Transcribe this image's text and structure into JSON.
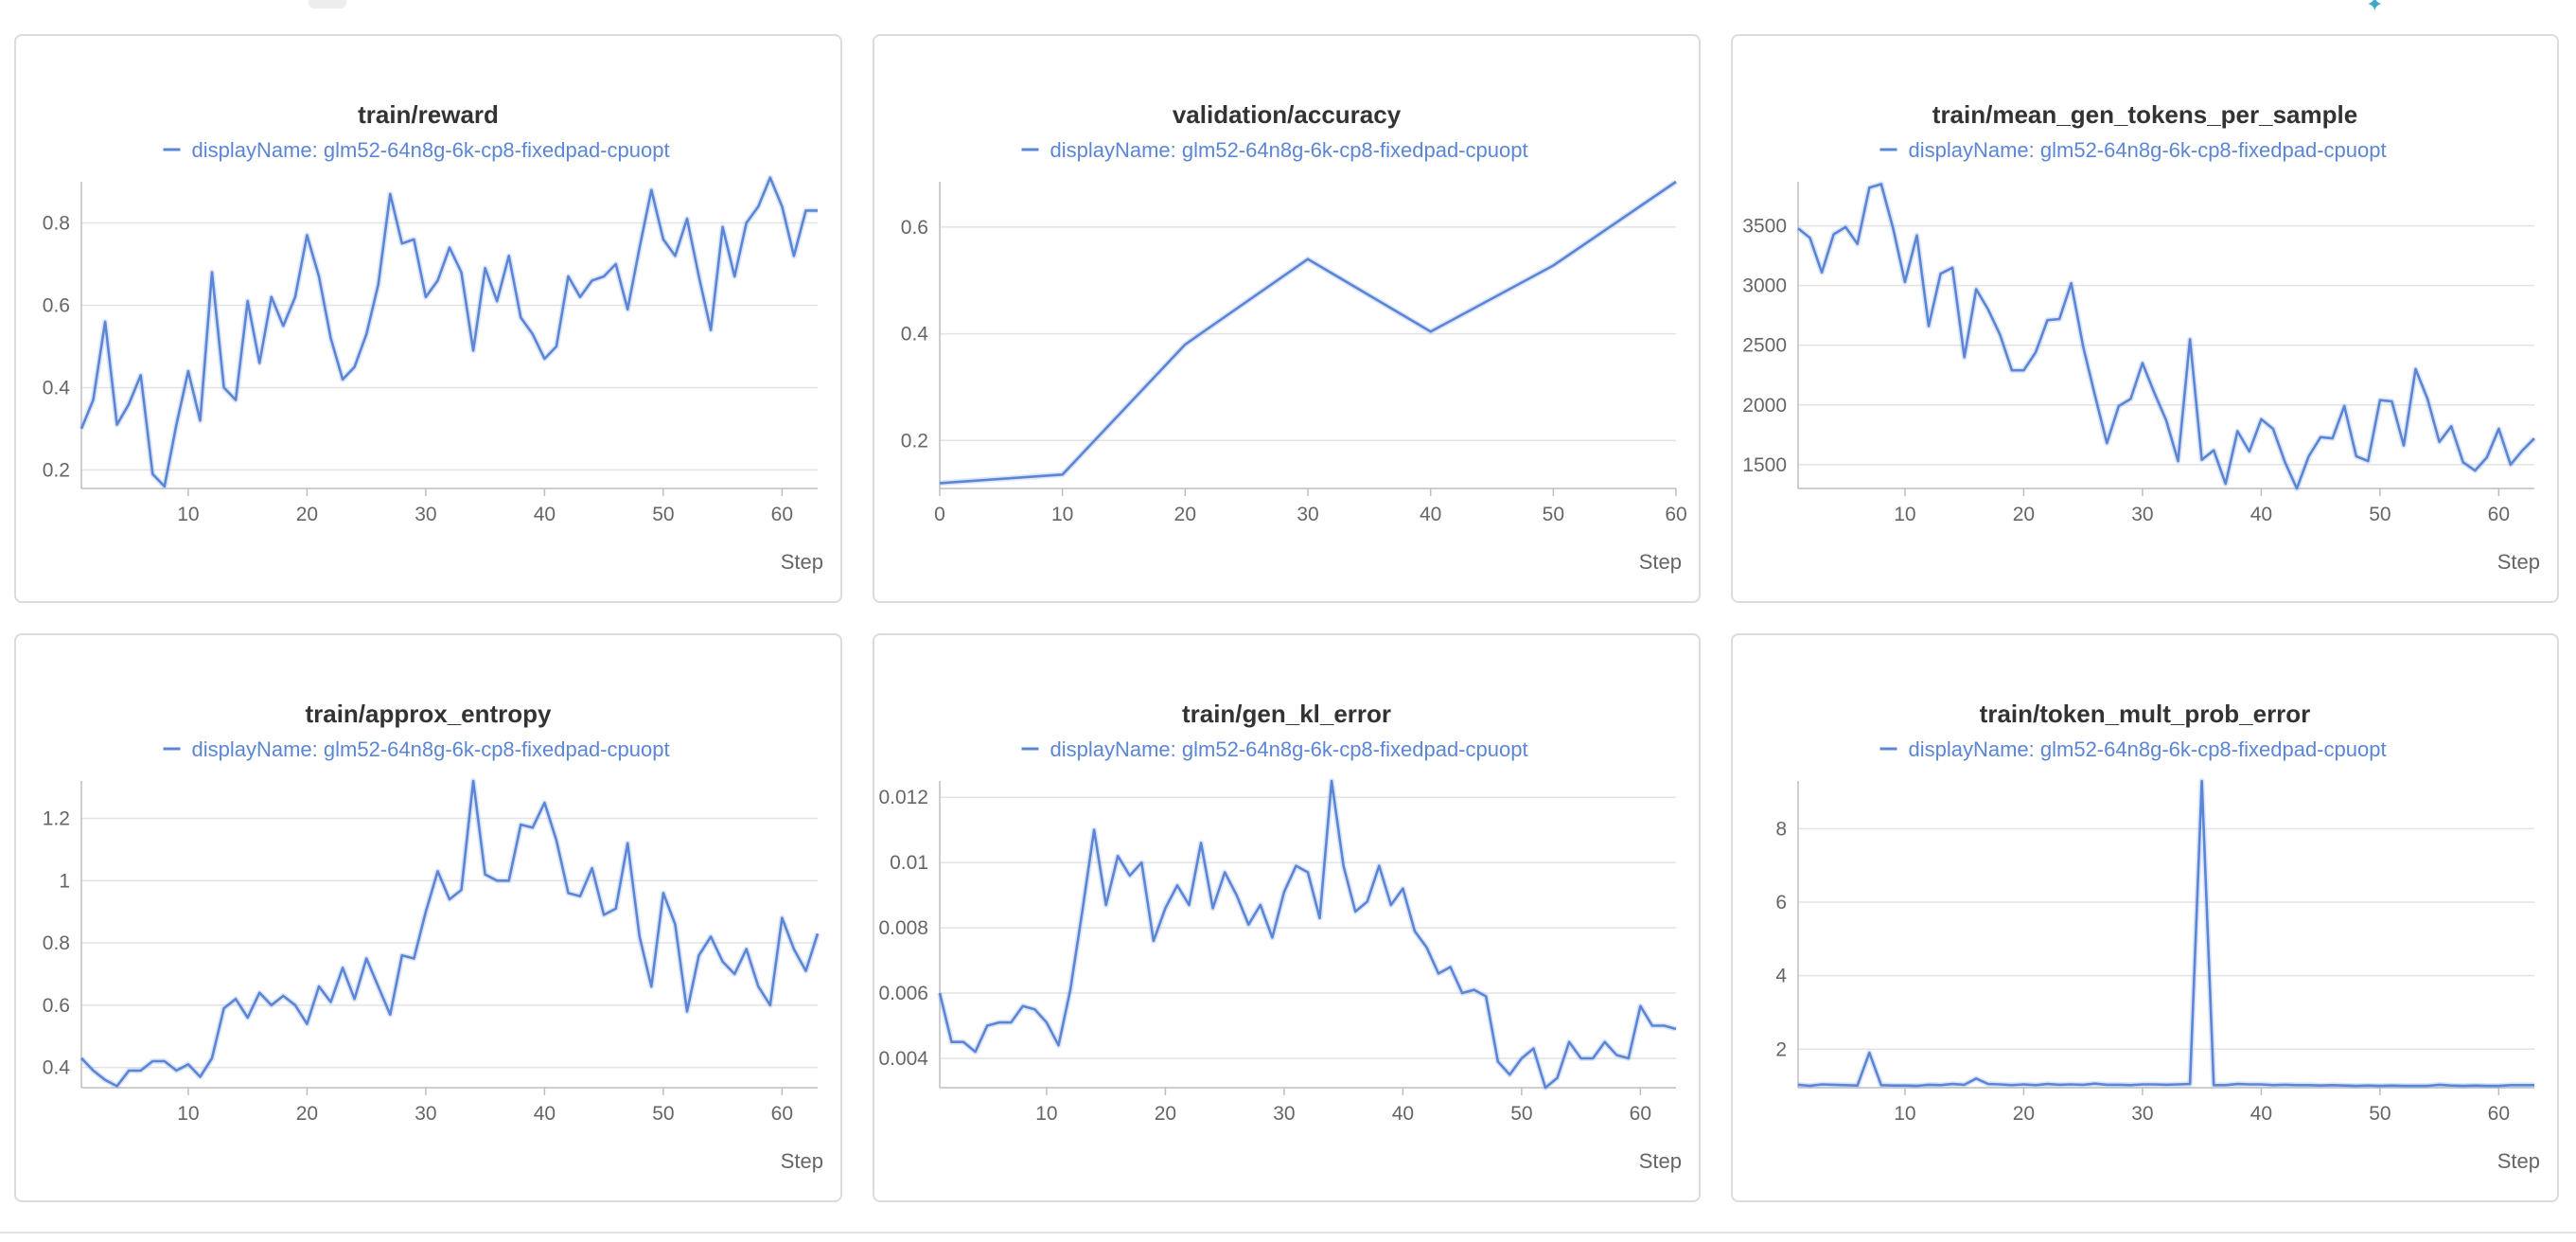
{
  "colors": {
    "series": "#5b86d6",
    "band": "#9db5ea",
    "grid": "#e3e3e3",
    "axis": "#bdbdbd"
  },
  "chart_data": [
    {
      "type": "line",
      "title": "train/reward",
      "legend": "displayName: glm52-64n8g-6k-cp8-fixedpad-cpuopt",
      "xlabel": "Step",
      "xlim": [
        1,
        63
      ],
      "ylim": [
        0.155,
        0.9
      ],
      "xticks": [
        10,
        20,
        30,
        40,
        50,
        60
      ],
      "yticks": [
        0.2,
        0.4,
        0.6,
        0.8
      ],
      "grid": true,
      "series": [
        {
          "x": [
            1,
            2,
            3,
            4,
            5,
            6,
            7,
            8,
            9,
            10,
            11,
            12,
            13,
            14,
            15,
            16,
            17,
            18,
            19,
            20,
            21,
            22,
            23,
            24,
            25,
            26,
            27,
            28,
            29,
            30,
            31,
            32,
            33,
            34,
            35,
            36,
            37,
            38,
            39,
            40,
            41,
            42,
            43,
            44,
            45,
            46,
            47,
            48,
            49,
            50,
            51,
            52,
            53,
            54,
            55,
            56,
            57,
            58,
            59,
            60,
            61,
            62,
            63
          ],
          "y": [
            0.3,
            0.37,
            0.56,
            0.31,
            0.36,
            0.43,
            0.19,
            0.16,
            0.31,
            0.44,
            0.32,
            0.68,
            0.4,
            0.37,
            0.61,
            0.46,
            0.62,
            0.55,
            0.62,
            0.77,
            0.67,
            0.52,
            0.42,
            0.45,
            0.53,
            0.65,
            0.87,
            0.75,
            0.76,
            0.62,
            0.66,
            0.74,
            0.68,
            0.49,
            0.69,
            0.61,
            0.72,
            0.57,
            0.53,
            0.47,
            0.5,
            0.67,
            0.62,
            0.66,
            0.67,
            0.7,
            0.59,
            0.74,
            0.88,
            0.76,
            0.72,
            0.81,
            0.67,
            0.54,
            0.79,
            0.67,
            0.8,
            0.84,
            0.91,
            0.84,
            0.72,
            0.83,
            0.83
          ]
        }
      ]
    },
    {
      "type": "line",
      "title": "validation/accuracy",
      "legend": "displayName: glm52-64n8g-6k-cp8-fixedpad-cpuopt",
      "xlabel": "Step",
      "xlim": [
        0,
        60
      ],
      "ylim": [
        0.11,
        0.685
      ],
      "xticks": [
        0,
        10,
        20,
        30,
        40,
        50,
        60
      ],
      "yticks": [
        0.2,
        0.4,
        0.6
      ],
      "grid": true,
      "series": [
        {
          "x": [
            0,
            10,
            20,
            30,
            40,
            50,
            60
          ],
          "y": [
            0.12,
            0.136,
            0.38,
            0.54,
            0.404,
            0.528,
            0.685
          ]
        }
      ]
    },
    {
      "type": "line",
      "title": "train/mean_gen_tokens_per_sample",
      "legend": "displayName: glm52-64n8g-6k-cp8-fixedpad-cpuopt",
      "xlabel": "Step",
      "xlim": [
        1,
        63
      ],
      "ylim": [
        1300,
        3870
      ],
      "xticks": [
        10,
        20,
        30,
        40,
        50,
        60
      ],
      "yticks": [
        1500,
        2000,
        2500,
        3000,
        3500
      ],
      "grid": true,
      "series": [
        {
          "x": [
            1,
            2,
            3,
            4,
            5,
            6,
            7,
            8,
            9,
            10,
            11,
            12,
            13,
            14,
            15,
            16,
            17,
            18,
            19,
            20,
            21,
            22,
            23,
            24,
            25,
            26,
            27,
            28,
            29,
            30,
            31,
            32,
            33,
            34,
            35,
            36,
            37,
            38,
            39,
            40,
            41,
            42,
            43,
            44,
            45,
            46,
            47,
            48,
            49,
            50,
            51,
            52,
            53,
            54,
            55,
            56,
            57,
            58,
            59,
            60,
            61,
            62,
            63
          ],
          "y": [
            3480,
            3400,
            3110,
            3430,
            3490,
            3350,
            3820,
            3850,
            3480,
            3030,
            3420,
            2660,
            3100,
            3150,
            2400,
            2970,
            2800,
            2590,
            2290,
            2290,
            2440,
            2710,
            2720,
            3020,
            2490,
            2080,
            1680,
            1990,
            2050,
            2350,
            2100,
            1870,
            1530,
            2550,
            1540,
            1620,
            1340,
            1780,
            1610,
            1880,
            1800,
            1520,
            1300,
            1570,
            1730,
            1720,
            1990,
            1570,
            1530,
            2040,
            2030,
            1660,
            2300,
            2050,
            1690,
            1820,
            1520,
            1450,
            1560,
            1800,
            1500,
            1620,
            1720
          ]
        }
      ]
    },
    {
      "type": "line",
      "title": "train/approx_entropy",
      "legend": "displayName: glm52-64n8g-6k-cp8-fixedpad-cpuopt",
      "xlabel": "Step",
      "xlim": [
        1,
        63
      ],
      "ylim": [
        0.335,
        1.32
      ],
      "xticks": [
        10,
        20,
        30,
        40,
        50,
        60
      ],
      "yticks": [
        0.4,
        0.6,
        0.8,
        1,
        1.2
      ],
      "grid": true,
      "series": [
        {
          "x": [
            1,
            2,
            3,
            4,
            5,
            6,
            7,
            8,
            9,
            10,
            11,
            12,
            13,
            14,
            15,
            16,
            17,
            18,
            19,
            20,
            21,
            22,
            23,
            24,
            25,
            26,
            27,
            28,
            29,
            30,
            31,
            32,
            33,
            34,
            35,
            36,
            37,
            38,
            39,
            40,
            41,
            42,
            43,
            44,
            45,
            46,
            47,
            48,
            49,
            50,
            51,
            52,
            53,
            54,
            55,
            56,
            57,
            58,
            59,
            60,
            61,
            62,
            63
          ],
          "y": [
            0.43,
            0.39,
            0.36,
            0.34,
            0.39,
            0.39,
            0.42,
            0.42,
            0.39,
            0.41,
            0.37,
            0.43,
            0.59,
            0.62,
            0.56,
            0.64,
            0.6,
            0.63,
            0.6,
            0.54,
            0.66,
            0.61,
            0.72,
            0.62,
            0.75,
            0.66,
            0.57,
            0.76,
            0.75,
            0.9,
            1.03,
            0.94,
            0.97,
            1.32,
            1.02,
            1.0,
            1.0,
            1.18,
            1.17,
            1.25,
            1.13,
            0.96,
            0.95,
            1.04,
            0.89,
            0.91,
            1.12,
            0.82,
            0.66,
            0.96,
            0.86,
            0.58,
            0.76,
            0.82,
            0.74,
            0.7,
            0.78,
            0.66,
            0.6,
            0.88,
            0.78,
            0.71,
            0.83
          ]
        }
      ]
    },
    {
      "type": "line",
      "title": "train/gen_kl_error",
      "legend": "displayName: glm52-64n8g-6k-cp8-fixedpad-cpuopt",
      "xlabel": "Step",
      "xlim": [
        1,
        63
      ],
      "ylim": [
        0.0031,
        0.0125
      ],
      "xticks": [
        10,
        20,
        30,
        40,
        50,
        60
      ],
      "yticks": [
        0.004,
        0.006,
        0.008,
        0.01,
        0.012
      ],
      "ytick_labels": [
        "0.004",
        "0.006",
        "0.008",
        "0.01",
        "0.012"
      ],
      "grid": true,
      "series": [
        {
          "x": [
            1,
            2,
            3,
            4,
            5,
            6,
            7,
            8,
            9,
            10,
            11,
            12,
            13,
            14,
            15,
            16,
            17,
            18,
            19,
            20,
            21,
            22,
            23,
            24,
            25,
            26,
            27,
            28,
            29,
            30,
            31,
            32,
            33,
            34,
            35,
            36,
            37,
            38,
            39,
            40,
            41,
            42,
            43,
            44,
            45,
            46,
            47,
            48,
            49,
            50,
            51,
            52,
            53,
            54,
            55,
            56,
            57,
            58,
            59,
            60,
            61,
            62,
            63
          ],
          "y": [
            0.006,
            0.0045,
            0.0045,
            0.0042,
            0.005,
            0.0051,
            0.0051,
            0.0056,
            0.0055,
            0.0051,
            0.0044,
            0.0061,
            0.0085,
            0.011,
            0.0087,
            0.0102,
            0.0096,
            0.01,
            0.0076,
            0.0086,
            0.0093,
            0.0087,
            0.0106,
            0.0086,
            0.0097,
            0.009,
            0.0081,
            0.0087,
            0.0077,
            0.0091,
            0.0099,
            0.0097,
            0.0083,
            0.0125,
            0.0099,
            0.0085,
            0.0088,
            0.0099,
            0.0087,
            0.0092,
            0.0079,
            0.0074,
            0.0066,
            0.0068,
            0.006,
            0.0061,
            0.0059,
            0.0039,
            0.0035,
            0.004,
            0.0043,
            0.0031,
            0.0034,
            0.0045,
            0.004,
            0.004,
            0.0045,
            0.0041,
            0.004,
            0.0056,
            0.005,
            0.005,
            0.0049
          ]
        }
      ]
    },
    {
      "type": "line",
      "title": "train/token_mult_prob_error",
      "legend": "displayName: glm52-64n8g-6k-cp8-fixedpad-cpuopt",
      "xlabel": "Step",
      "xlim": [
        1,
        63
      ],
      "ylim": [
        0.95,
        9.3
      ],
      "xticks": [
        10,
        20,
        30,
        40,
        50,
        60
      ],
      "yticks": [
        2,
        4,
        6,
        8
      ],
      "grid": true,
      "series": [
        {
          "x": [
            1,
            2,
            3,
            4,
            5,
            6,
            7,
            8,
            9,
            10,
            11,
            12,
            13,
            14,
            15,
            16,
            17,
            18,
            19,
            20,
            21,
            22,
            23,
            24,
            25,
            26,
            27,
            28,
            29,
            30,
            31,
            32,
            33,
            34,
            35,
            36,
            37,
            38,
            39,
            40,
            41,
            42,
            43,
            44,
            45,
            46,
            47,
            48,
            49,
            50,
            51,
            52,
            53,
            54,
            55,
            56,
            57,
            58,
            59,
            60,
            61,
            62,
            63
          ],
          "y": [
            1.03,
            1.0,
            1.04,
            1.03,
            1.02,
            1.01,
            1.9,
            1.02,
            1.01,
            1.01,
            1.0,
            1.03,
            1.02,
            1.05,
            1.03,
            1.2,
            1.05,
            1.04,
            1.02,
            1.04,
            1.02,
            1.05,
            1.03,
            1.04,
            1.03,
            1.06,
            1.03,
            1.03,
            1.02,
            1.04,
            1.04,
            1.03,
            1.04,
            1.05,
            9.3,
            1.02,
            1.02,
            1.05,
            1.04,
            1.04,
            1.02,
            1.03,
            1.02,
            1.02,
            1.01,
            1.02,
            1.01,
            1.0,
            1.01,
            1.0,
            1.01,
            1.0,
            1.0,
            1.0,
            1.03,
            1.01,
            1.0,
            1.01,
            1.0,
            1.0,
            1.02,
            1.02,
            1.02
          ]
        }
      ]
    }
  ]
}
